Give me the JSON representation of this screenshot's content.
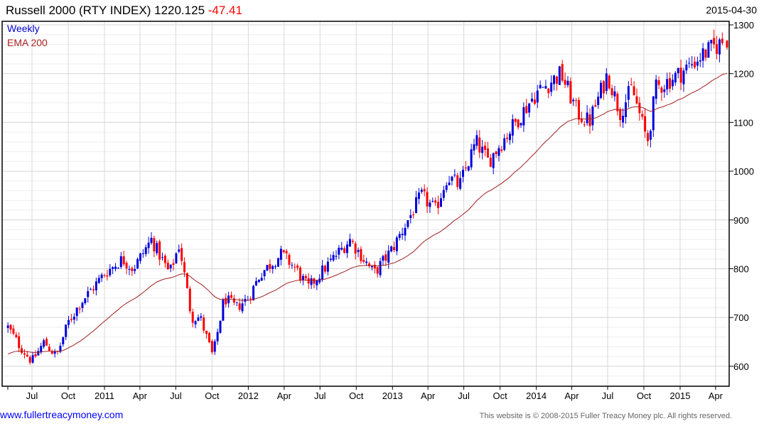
{
  "header": {
    "title": "Russell 2000 (RTY INDEX) 1220.125",
    "change": "-47.41",
    "date": "2015-04-30"
  },
  "legend": {
    "series": "Weekly",
    "ema": "EMA 200"
  },
  "footer": {
    "site": "www.fullertreacymoney.com",
    "copyright": "This website is © 2008-2015 Fuller Treacy Money plc. All rights reserved."
  },
  "colors": {
    "up": "#0000dd",
    "down": "#ff0000",
    "ema": "#a02020",
    "grid": "#dddddd"
  },
  "chart_data": {
    "type": "candlestick",
    "title": "Russell 2000 (RTY INDEX)",
    "frequency": "weekly",
    "last_close": 1220.125,
    "last_change": -47.41,
    "ylim": [
      560,
      1310
    ],
    "yticks": [
      600,
      700,
      800,
      900,
      1000,
      1100,
      1200,
      1300
    ],
    "xticks": [
      {
        "date": "2010-07-01",
        "label": "Jul"
      },
      {
        "date": "2010-10-01",
        "label": "Oct"
      },
      {
        "date": "2011-01-01",
        "label": "2011"
      },
      {
        "date": "2011-04-01",
        "label": "Apr"
      },
      {
        "date": "2011-07-01",
        "label": "Jul"
      },
      {
        "date": "2011-10-01",
        "label": "Oct"
      },
      {
        "date": "2012-01-01",
        "label": "2012"
      },
      {
        "date": "2012-04-01",
        "label": "Apr"
      },
      {
        "date": "2012-07-01",
        "label": "Jul"
      },
      {
        "date": "2012-10-01",
        "label": "Oct"
      },
      {
        "date": "2013-01-01",
        "label": "2013"
      },
      {
        "date": "2013-04-01",
        "label": "Apr"
      },
      {
        "date": "2013-07-01",
        "label": "Jul"
      },
      {
        "date": "2013-10-01",
        "label": "Oct"
      },
      {
        "date": "2014-01-01",
        "label": "2014"
      },
      {
        "date": "2014-04-01",
        "label": "Apr"
      },
      {
        "date": "2014-07-01",
        "label": "Jul"
      },
      {
        "date": "2014-10-01",
        "label": "Oct"
      },
      {
        "date": "2015-01-01",
        "label": "2015"
      },
      {
        "date": "2015-04-01",
        "label": "Apr"
      }
    ],
    "key_closes": [
      [
        "2010-05-01",
        680
      ],
      [
        "2010-06-01",
        640
      ],
      [
        "2010-07-01",
        610
      ],
      [
        "2010-08-01",
        650
      ],
      [
        "2010-09-01",
        620
      ],
      [
        "2010-10-01",
        690
      ],
      [
        "2010-11-01",
        730
      ],
      [
        "2011-01-01",
        790
      ],
      [
        "2011-02-15",
        820
      ],
      [
        "2011-03-15",
        800
      ],
      [
        "2011-04-30",
        860
      ],
      [
        "2011-06-15",
        790
      ],
      [
        "2011-07-10",
        850
      ],
      [
        "2011-08-10",
        700
      ],
      [
        "2011-09-01",
        700
      ],
      [
        "2011-10-03",
        620
      ],
      [
        "2011-11-01",
        740
      ],
      [
        "2011-12-01",
        720
      ],
      [
        "2012-01-01",
        740
      ],
      [
        "2012-02-01",
        790
      ],
      [
        "2012-03-25",
        830
      ],
      [
        "2012-05-01",
        800
      ],
      [
        "2012-06-01",
        760
      ],
      [
        "2012-07-01",
        790
      ],
      [
        "2012-09-15",
        860
      ],
      [
        "2012-11-15",
        790
      ],
      [
        "2012-12-31",
        840
      ],
      [
        "2013-03-15",
        950
      ],
      [
        "2013-04-20",
        920
      ],
      [
        "2013-05-20",
        990
      ],
      [
        "2013-06-20",
        970
      ],
      [
        "2013-08-01",
        1060
      ],
      [
        "2013-09-01",
        1020
      ],
      [
        "2013-12-31",
        1160
      ],
      [
        "2014-03-05",
        1200
      ],
      [
        "2014-04-15",
        1120
      ],
      [
        "2014-05-15",
        1100
      ],
      [
        "2014-07-01",
        1200
      ],
      [
        "2014-08-01",
        1120
      ],
      [
        "2014-09-01",
        1170
      ],
      [
        "2014-10-10",
        1060
      ],
      [
        "2014-11-01",
        1170
      ],
      [
        "2014-12-31",
        1200
      ],
      [
        "2015-03-01",
        1240
      ],
      [
        "2015-04-23",
        1267
      ],
      [
        "2015-04-30",
        1220
      ]
    ],
    "ema_start": 622
  }
}
